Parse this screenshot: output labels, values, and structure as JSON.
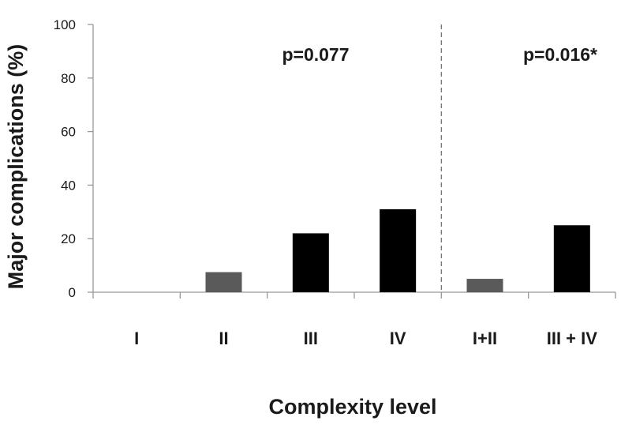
{
  "chart_data": {
    "type": "bar",
    "categories": [
      "I",
      "II",
      "III",
      "IV",
      "I+II",
      "III + IV"
    ],
    "values": [
      0,
      7.5,
      22,
      31,
      5,
      25
    ],
    "bar_colors": [
      "#5a5a5a",
      "#5a5a5a",
      "#000000",
      "#000000",
      "#5a5a5a",
      "#000000"
    ],
    "xlabel": "Complexity level",
    "ylabel": "Major complications (%)",
    "ylim": [
      0,
      100
    ],
    "yticks": [
      "0",
      "20",
      "40",
      "60",
      "80",
      "100"
    ],
    "grid": false,
    "divider_after_index": 3,
    "annotations": [
      "p=0.077",
      "p=0.016*"
    ],
    "colors": {
      "dark": "#000000",
      "gray": "#5a5a5a",
      "axis": "#999999",
      "divider": "#777777"
    }
  }
}
